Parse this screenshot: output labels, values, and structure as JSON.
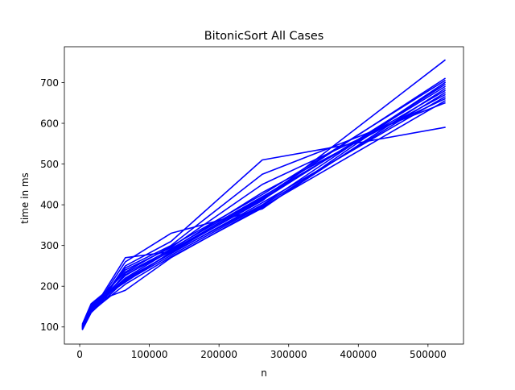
{
  "chart_data": {
    "type": "line",
    "title": "BitonicSort All Cases",
    "xlabel": "n",
    "ylabel": "time in ms",
    "xlim": [
      -22000,
      551000
    ],
    "ylim": [
      58,
      788
    ],
    "xticks": [
      0,
      100000,
      200000,
      300000,
      400000,
      500000
    ],
    "xtick_labels": [
      "0",
      "100000",
      "200000",
      "300000",
      "400000",
      "500000"
    ],
    "yticks": [
      100,
      200,
      300,
      400,
      500,
      600,
      700
    ],
    "ytick_labels": [
      "100",
      "200",
      "300",
      "400",
      "500",
      "600",
      "700"
    ],
    "grid": false,
    "legend": "none",
    "line_color": "#0000ff",
    "x": [
      4096,
      16384,
      32768,
      65536,
      131072,
      262144,
      524288
    ],
    "series": [
      {
        "values": [
          108,
          157,
          180,
          270,
          285,
          410,
          755
        ]
      },
      {
        "values": [
          105,
          150,
          175,
          260,
          330,
          390,
          700
        ]
      },
      {
        "values": [
          100,
          145,
          170,
          250,
          310,
          510,
          590
        ]
      },
      {
        "values": [
          98,
          140,
          168,
          245,
          300,
          475,
          650
        ]
      },
      {
        "values": [
          102,
          152,
          176,
          240,
          295,
          450,
          660
        ]
      },
      {
        "values": [
          96,
          138,
          165,
          232,
          290,
          430,
          670
        ]
      },
      {
        "values": [
          104,
          148,
          172,
          226,
          292,
          420,
          680
        ]
      },
      {
        "values": [
          100,
          142,
          170,
          220,
          288,
          415,
          690
        ]
      },
      {
        "values": [
          94,
          135,
          162,
          215,
          282,
          400,
          700
        ]
      },
      {
        "values": [
          106,
          155,
          178,
          235,
          298,
          425,
          705
        ]
      },
      {
        "values": [
          101,
          146,
          171,
          228,
          286,
          418,
          710
        ]
      },
      {
        "values": [
          97,
          141,
          167,
          218,
          280,
          405,
          665
        ]
      },
      {
        "values": [
          103,
          150,
          174,
          212,
          276,
          398,
          675
        ]
      },
      {
        "values": [
          95,
          137,
          160,
          205,
          272,
          392,
          685
        ]
      },
      {
        "values": [
          99,
          144,
          169,
          190,
          270,
          395,
          655
        ]
      },
      {
        "values": [
          102,
          149,
          173,
          210,
          284,
          412,
          695
        ]
      }
    ]
  }
}
